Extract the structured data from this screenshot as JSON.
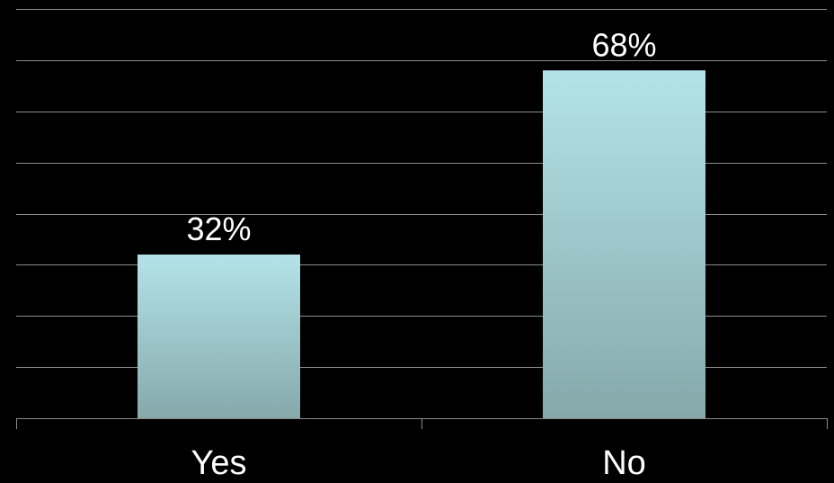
{
  "chart_data": {
    "type": "bar",
    "categories": [
      "Yes",
      "No"
    ],
    "values": [
      32,
      68
    ],
    "data_labels": [
      "32%",
      "68%"
    ],
    "ylim": [
      0,
      80
    ],
    "gridlines": true,
    "legend": "none",
    "colors": {
      "background": "#000000",
      "bar_top": "#b3e3e8",
      "bar_bottom": "#86a9ab",
      "grid": "#8c8c8c",
      "text": "#ffffff"
    }
  }
}
